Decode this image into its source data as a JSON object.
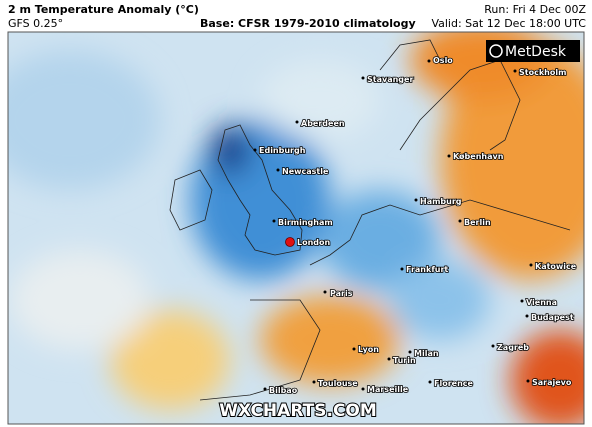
{
  "header": {
    "title": "2 m Temperature Anomaly (°C)",
    "model": "GFS 0.25°",
    "base": "Base: CFSR 1979-2010 climatology",
    "run": "Run: Fri 4 Dec 00Z",
    "valid": "Valid: Sat 12 Dec 18:00 UTC"
  },
  "logos": {
    "metdesk": "MetDesk",
    "wxcharts": "WXCHARTS.COM"
  },
  "cities": [
    "Oslo",
    "Stavanger",
    "Stockholm",
    "Aberdeen",
    "Edinburgh",
    "Newcastle",
    "København",
    "Hamburg",
    "Berlin",
    "Birmingham",
    "London",
    "Frankfurt",
    "Katowice",
    "Paris",
    "Vienna",
    "Budapest",
    "Lyon",
    "Milan",
    "Turin",
    "Zagreb",
    "Toulouse",
    "Marseille",
    "Florence",
    "Bilbao",
    "Sarajevo"
  ]
}
